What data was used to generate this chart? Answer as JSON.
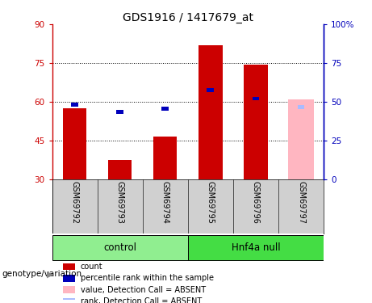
{
  "title": "GDS1916 / 1417679_at",
  "samples": [
    "GSM69792",
    "GSM69793",
    "GSM69794",
    "GSM69795",
    "GSM69796",
    "GSM69797"
  ],
  "count_values": [
    57.5,
    37.5,
    46.5,
    82.0,
    74.5,
    null
  ],
  "rank_values": [
    48.0,
    43.5,
    45.5,
    57.5,
    52.0,
    null
  ],
  "absent_count_value": 61.0,
  "absent_rank_value": 46.5,
  "absent_sample_idx": 5,
  "ylim_left": [
    30,
    90
  ],
  "ylim_right": [
    0,
    100
  ],
  "yticks_left": [
    30,
    45,
    60,
    75,
    90
  ],
  "yticks_right": [
    0,
    25,
    50,
    75,
    100
  ],
  "count_color": "#CC0000",
  "rank_color": "#0000BB",
  "absent_count_color": "#FFB6C1",
  "absent_rank_color": "#AABBFF",
  "left_axis_color": "#CC0000",
  "right_axis_color": "#0000BB",
  "group_control_color": "#90EE90",
  "group_null_color": "#44DD44",
  "bar_width": 0.35
}
